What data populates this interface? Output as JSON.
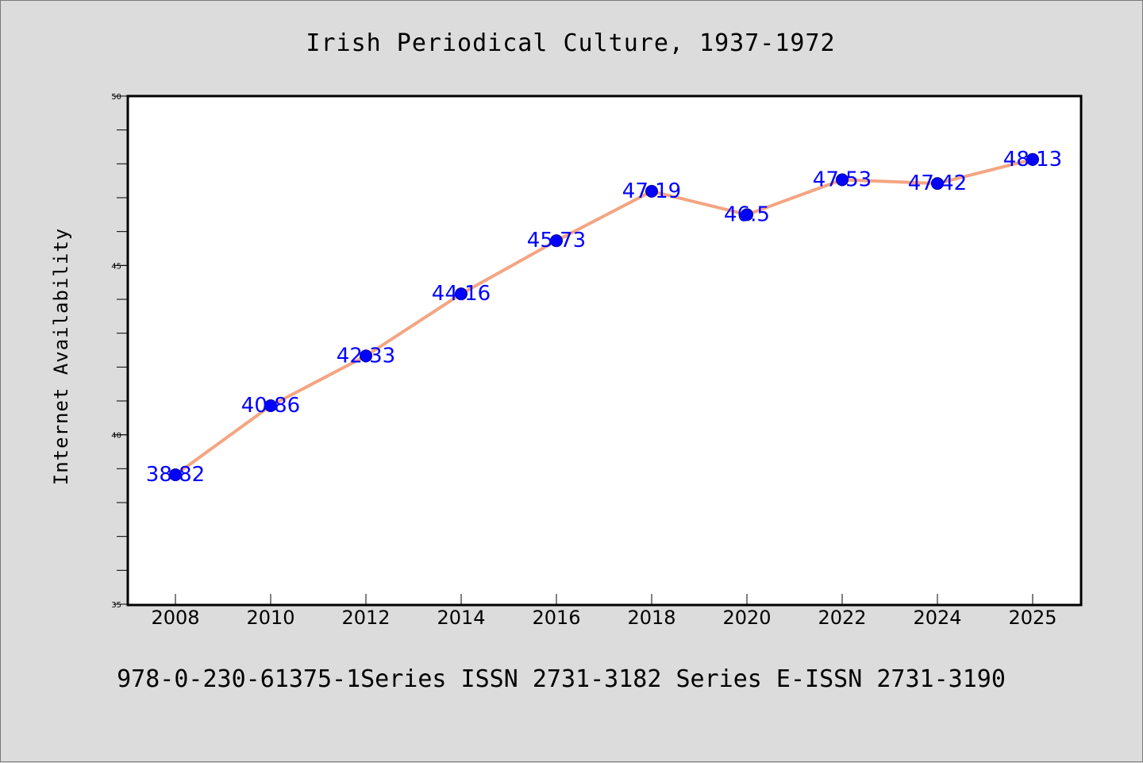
{
  "chart_data": {
    "type": "line",
    "title": "Irish Periodical Culture, 1937-1972",
    "xlabel": "",
    "ylabel": "Internet Availability",
    "footer": "978-0-230-61375-1Series ISSN 2731-3182 Series E-ISSN 2731-3190",
    "categories": [
      "2008",
      "2010",
      "2012",
      "2014",
      "2016",
      "2018",
      "2020",
      "2022",
      "2024",
      "2025"
    ],
    "series": [
      {
        "values": [
          38.82,
          40.86,
          42.33,
          44.16,
          45.73,
          47.19,
          46.5,
          47.53,
          47.42,
          48.13
        ],
        "labels": [
          "38.82",
          "40.86",
          "42.33",
          "44.16",
          "45.73",
          "47.19",
          "46.5",
          "47.53",
          "47.42",
          "48.13"
        ],
        "line_color": "#f4a582",
        "marker_color": "#0000ff"
      }
    ],
    "yticks": [
      "35",
      "40",
      "45",
      "50"
    ],
    "ylim": [
      35,
      50
    ],
    "grid": false,
    "background": "#dcdcdc",
    "plot_background": "#ffffff"
  }
}
